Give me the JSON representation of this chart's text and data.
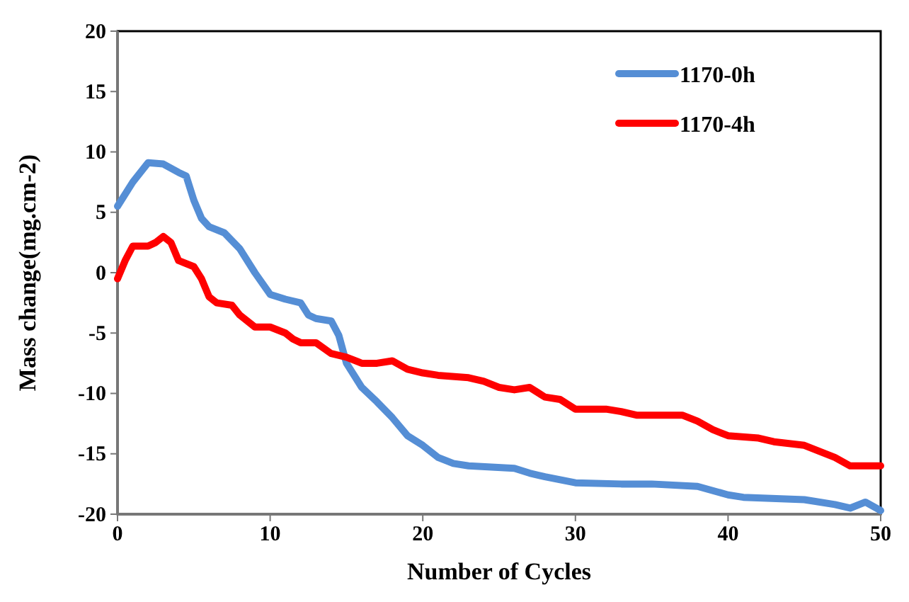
{
  "chart_data": {
    "type": "line",
    "xlabel": "Number of Cycles",
    "ylabel": "Mass change(mg.cm-2)",
    "xlim": [
      0,
      50
    ],
    "xticks": [
      0,
      10,
      20,
      30,
      40,
      50
    ],
    "ylim": [
      -20,
      20
    ],
    "yticks": [
      -20,
      -15,
      -10,
      -5,
      0,
      5,
      10,
      15,
      20
    ],
    "grid": false,
    "legend": "top right",
    "marker": "none",
    "line_style": "solid",
    "series": [
      {
        "name": "1170-0h",
        "color": "#558ed5",
        "x": [
          0,
          1,
          2,
          3,
          4,
          4.5,
          5,
          5.5,
          6,
          7,
          8,
          9,
          10,
          11,
          12,
          12.5,
          13,
          14,
          14.5,
          15,
          16,
          17,
          18,
          19,
          20,
          21,
          22,
          23,
          26,
          27,
          28,
          30,
          33,
          35,
          38,
          40,
          41,
          45,
          47,
          48,
          49,
          50
        ],
        "values": [
          5.5,
          7.5,
          9.1,
          9,
          8.3,
          8,
          6,
          4.5,
          3.8,
          3.3,
          2,
          0,
          -1.8,
          -2.2,
          -2.5,
          -3.5,
          -3.8,
          -4,
          -5.2,
          -7.5,
          -9.5,
          -10.7,
          -12,
          -13.5,
          -14.3,
          -15.3,
          -15.8,
          -16,
          -16.2,
          -16.6,
          -16.9,
          -17.4,
          -17.5,
          -17.5,
          -17.7,
          -18.4,
          -18.6,
          -18.8,
          -19.2,
          -19.5,
          -19,
          -19.7
        ]
      },
      {
        "name": "1170-4h",
        "color": "#ff0000",
        "x": [
          0,
          0.5,
          1,
          2,
          2.5,
          3,
          3.5,
          4,
          5,
          5.5,
          6,
          6.5,
          7.5,
          8,
          9,
          10,
          11,
          11.5,
          12,
          13,
          14,
          15,
          16,
          17,
          18,
          19,
          20,
          21,
          23,
          24,
          25,
          26,
          27,
          28,
          29,
          30,
          32,
          33,
          34,
          37,
          38,
          39,
          40,
          42,
          43,
          45,
          46,
          47,
          48,
          50
        ],
        "values": [
          -0.5,
          1,
          2.2,
          2.2,
          2.5,
          3,
          2.5,
          1,
          0.5,
          -0.5,
          -2,
          -2.5,
          -2.7,
          -3.5,
          -4.5,
          -4.5,
          -5,
          -5.5,
          -5.8,
          -5.8,
          -6.7,
          -7,
          -7.5,
          -7.5,
          -7.3,
          -8,
          -8.3,
          -8.5,
          -8.7,
          -9,
          -9.5,
          -9.7,
          -9.5,
          -10.3,
          -10.5,
          -11.3,
          -11.3,
          -11.5,
          -11.8,
          -11.8,
          -12.3,
          -13,
          -13.5,
          -13.7,
          -14,
          -14.3,
          -14.8,
          -15.3,
          -16,
          -16
        ]
      }
    ]
  }
}
